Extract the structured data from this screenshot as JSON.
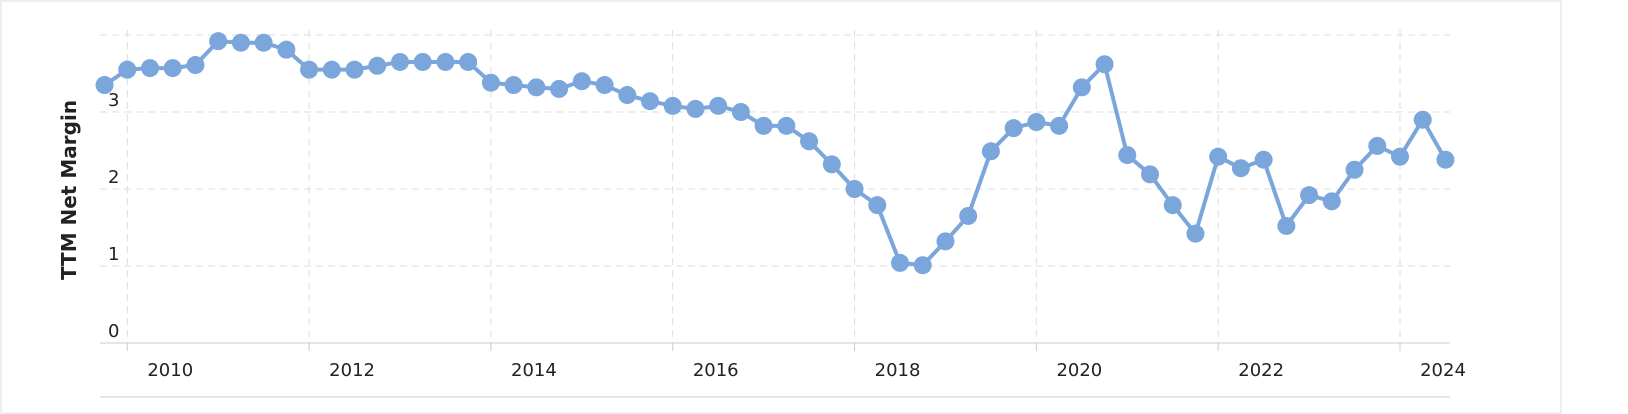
{
  "chart_data": {
    "type": "line",
    "y_label": "TTM Net Margin",
    "x": [
      2009.75,
      2010,
      2010.25,
      2010.5,
      2010.75,
      2011,
      2011.25,
      2011.5,
      2011.75,
      2012,
      2012.25,
      2012.5,
      2012.75,
      2013,
      2013.25,
      2013.5,
      2013.75,
      2014,
      2014.25,
      2014.5,
      2014.75,
      2015,
      2015.25,
      2015.5,
      2015.75,
      2016,
      2016.25,
      2016.5,
      2016.75,
      2017,
      2017.25,
      2017.5,
      2017.75,
      2018,
      2018.25,
      2018.5,
      2018.75,
      2019,
      2019.25,
      2019.5,
      2019.75,
      2020,
      2020.25,
      2020.5,
      2020.75,
      2021,
      2021.25,
      2021.5,
      2021.75,
      2022,
      2022.25,
      2022.5,
      2022.75,
      2023,
      2023.25,
      2023.5,
      2023.75,
      2024,
      2024.25,
      2024.5
    ],
    "series": [
      {
        "color": "#7aa6db",
        "values": [
          3.35,
          3.55,
          3.57,
          3.57,
          3.61,
          3.92,
          3.9,
          3.9,
          3.81,
          3.55,
          3.55,
          3.55,
          3.6,
          3.65,
          3.65,
          3.65,
          3.65,
          3.38,
          3.35,
          3.32,
          3.3,
          3.4,
          3.35,
          3.22,
          3.14,
          3.08,
          3.04,
          3.08,
          3.0,
          2.82,
          2.82,
          2.62,
          2.32,
          2.0,
          1.79,
          1.04,
          1.01,
          1.32,
          1.65,
          2.49,
          2.79,
          2.87,
          2.82,
          3.32,
          3.62,
          2.44,
          2.19,
          1.79,
          1.42,
          2.42,
          2.27,
          2.38,
          1.52,
          1.92,
          1.84,
          2.25,
          2.56,
          2.42,
          2.9,
          2.38
        ]
      }
    ],
    "xlim": [
      2009.7,
      2024.55
    ],
    "xticks": [
      2010,
      2012,
      2014,
      2016,
      2018,
      2020,
      2022,
      2024
    ],
    "ylim": [
      0,
      4
    ],
    "yticks": [
      0,
      1,
      2,
      3
    ],
    "grid": true
  }
}
